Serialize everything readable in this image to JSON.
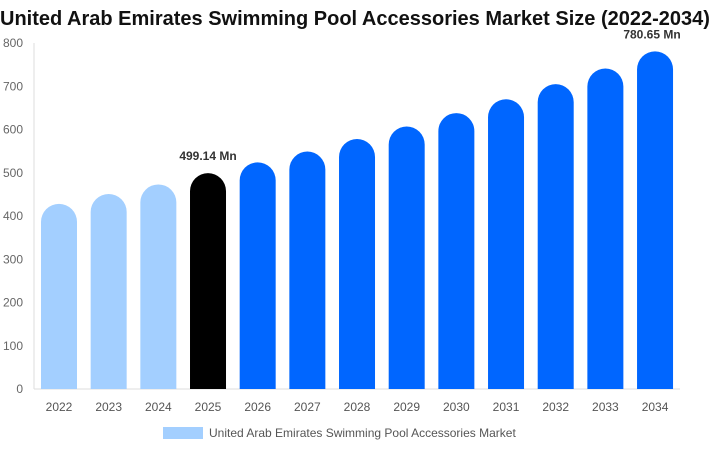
{
  "chart_data": {
    "type": "bar",
    "title": "United Arab Emirates Swimming Pool Accessories Market Size (2022-2034)",
    "categories": [
      "2022",
      "2023",
      "2024",
      "2025",
      "2026",
      "2027",
      "2028",
      "2029",
      "2030",
      "2031",
      "2032",
      "2033",
      "2034"
    ],
    "series": [
      {
        "name": "United Arab Emirates Swimming Pool Accessories Market",
        "values": [
          428,
          451,
          473,
          499.14,
          524,
          549,
          578,
          607,
          638,
          670,
          705,
          741,
          780.65
        ]
      }
    ],
    "data_labels": {
      "2025": "499.14 Mn",
      "2034": "780.65 Mn"
    },
    "yticks": [
      0,
      100,
      200,
      300,
      400,
      500,
      600,
      700,
      800
    ],
    "ylim": [
      0,
      800
    ],
    "grid": false,
    "legend_position": "bottom",
    "colors": {
      "historic": "#a3cfff",
      "current": "#000000",
      "forecast": "#0066ff",
      "legend": "#a3cfff"
    }
  }
}
